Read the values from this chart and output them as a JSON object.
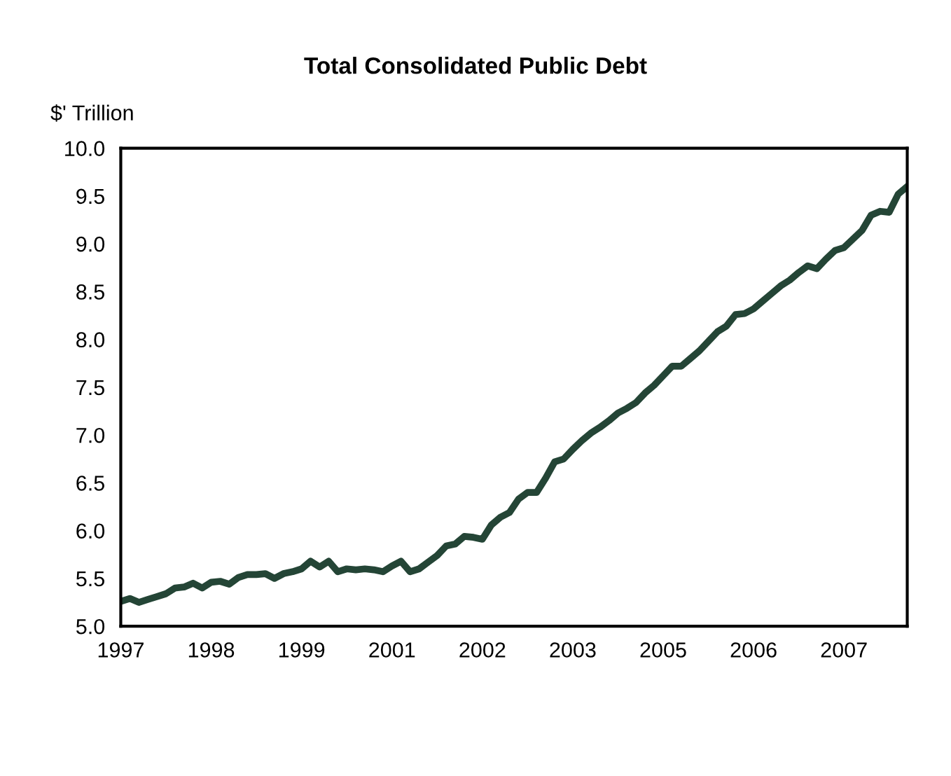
{
  "chart_data": {
    "type": "line",
    "title": "Total Consolidated Public Debt",
    "ylabel": "$' Trillion",
    "categories": [
      "1997",
      null,
      null,
      null,
      null,
      null,
      null,
      null,
      null,
      null,
      "1998",
      null,
      null,
      null,
      null,
      null,
      null,
      null,
      null,
      null,
      "1999",
      null,
      null,
      null,
      null,
      null,
      null,
      null,
      null,
      null,
      "2001",
      null,
      null,
      null,
      null,
      null,
      null,
      null,
      null,
      null,
      "2002",
      null,
      null,
      null,
      null,
      null,
      null,
      null,
      null,
      null,
      "2003",
      null,
      null,
      null,
      null,
      null,
      null,
      null,
      null,
      null,
      "2005",
      null,
      null,
      null,
      null,
      null,
      null,
      null,
      null,
      null,
      "2006",
      null,
      null,
      null,
      null,
      null,
      null,
      null,
      null,
      null,
      "2007",
      null,
      null,
      null,
      null,
      null,
      null,
      null
    ],
    "series": [
      {
        "color": "#244536",
        "values": [
          5.26,
          5.29,
          5.25,
          5.28,
          5.31,
          5.34,
          5.4,
          5.41,
          5.45,
          5.4,
          5.46,
          5.47,
          5.44,
          5.51,
          5.54,
          5.54,
          5.55,
          5.5,
          5.55,
          5.57,
          5.6,
          5.68,
          5.62,
          5.68,
          5.57,
          5.6,
          5.59,
          5.6,
          5.59,
          5.57,
          5.63,
          5.68,
          5.57,
          5.6,
          5.67,
          5.74,
          5.84,
          5.86,
          5.94,
          5.93,
          5.91,
          6.06,
          6.14,
          6.19,
          6.33,
          6.4,
          6.4,
          6.55,
          6.72,
          6.75,
          6.85,
          6.94,
          7.02,
          7.08,
          7.15,
          7.23,
          7.28,
          7.34,
          7.44,
          7.52,
          7.62,
          7.72,
          7.72,
          7.8,
          7.88,
          7.98,
          8.08,
          8.14,
          8.26,
          8.27,
          8.32,
          8.4,
          8.48,
          8.56,
          8.62,
          8.7,
          8.77,
          8.74,
          8.84,
          8.93,
          8.96,
          9.05,
          9.14,
          9.3,
          9.34,
          9.33,
          9.52,
          9.6
        ]
      }
    ],
    "ylim": [
      5.0,
      10.0
    ],
    "yticks": [
      {
        "value": 5.0,
        "label": "5.0"
      },
      {
        "value": 5.5,
        "label": "5.5"
      },
      {
        "value": 6.0,
        "label": "6.0"
      },
      {
        "value": 6.5,
        "label": "6.5"
      },
      {
        "value": 7.0,
        "label": "7.0"
      },
      {
        "value": 7.5,
        "label": "7.5"
      },
      {
        "value": 8.0,
        "label": "8.0"
      },
      {
        "value": 8.5,
        "label": "8.5"
      },
      {
        "value": 9.0,
        "label": "9.0"
      },
      {
        "value": 9.5,
        "label": "9.5"
      },
      {
        "value": 10.0,
        "label": "10.0"
      }
    ],
    "grid": false,
    "legend": false,
    "marker": "none",
    "line_style": "solid"
  }
}
